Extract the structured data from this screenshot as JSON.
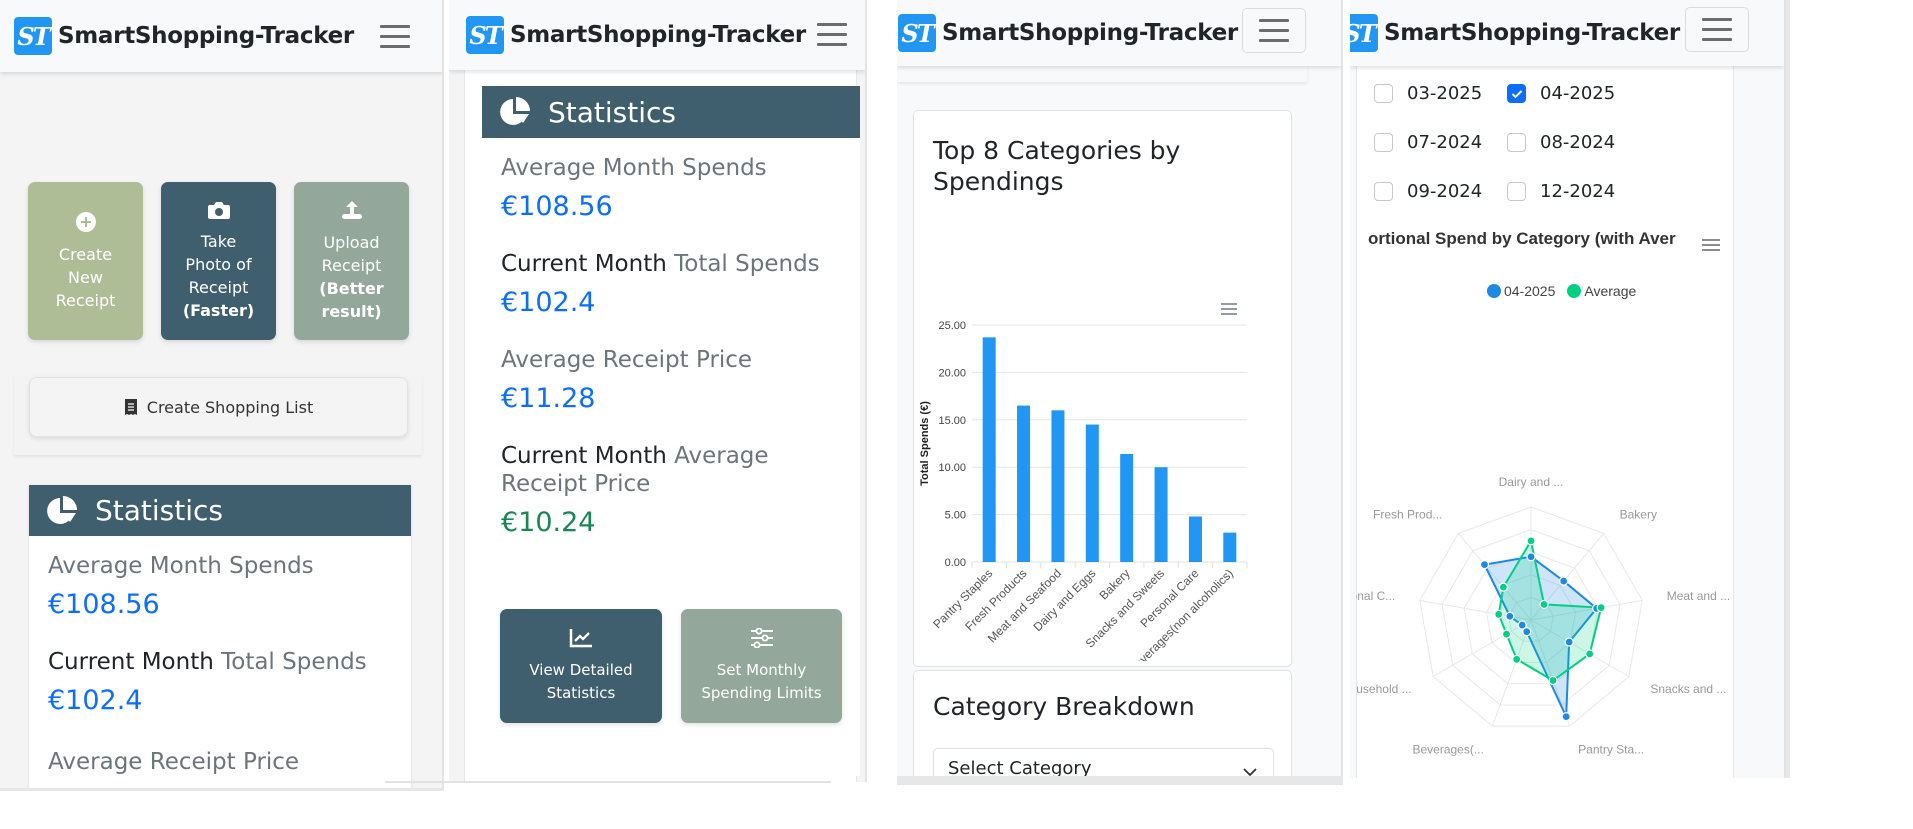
{
  "app": {
    "brand": "SmartShopping-Tracker",
    "logo_text": "ST"
  },
  "colors": {
    "accent": "#2196f3",
    "stat_header": "#3f5f6f",
    "tile_olive": "#aebd95",
    "tile_dark": "#3f5f6f",
    "tile_sage": "#93a89b",
    "value_blue": "#0d6efd",
    "value_green": "#198754"
  },
  "panel1": {
    "tiles": [
      {
        "icon": "plus-circle-icon",
        "line1": "Create",
        "line2": "New",
        "line3": "Receipt",
        "bold": ""
      },
      {
        "icon": "camera-icon",
        "line1": "Take",
        "line2": "Photo of",
        "line3": "Receipt",
        "bold": "(Faster)"
      },
      {
        "icon": "upload-icon",
        "line1": "Upload",
        "line2": "Receipt",
        "line3": "(Better",
        "bold": "result)"
      }
    ],
    "shopping_list_label": "Create Shopping List",
    "stats_title": "Statistics",
    "stats": [
      {
        "label_dark": "",
        "label": "Average Month Spends",
        "value": "€108.56"
      },
      {
        "label_dark": "Current Month",
        "label": "Total Spends",
        "value": "€102.4"
      },
      {
        "label_dark": "",
        "label": "Average Receipt Price",
        "value": ""
      }
    ]
  },
  "panel2": {
    "stats_title": "Statistics",
    "stats": [
      {
        "label_dark": "",
        "label": "Average Month Spends",
        "value": "€108.56"
      },
      {
        "label_dark": "Current Month",
        "label": "Total Spends",
        "value": "€102.4"
      },
      {
        "label_dark": "",
        "label": "Average Receipt Price",
        "value": "€11.28"
      },
      {
        "label_dark": "Current Month",
        "label": "Average Receipt Price",
        "value": "€10.24"
      }
    ],
    "buttons": [
      {
        "icon": "line-chart-icon",
        "line1": "View Detailed",
        "line2": "Statistics"
      },
      {
        "icon": "sliders-icon",
        "line1": "Set Monthly",
        "line2": "Spending Limits"
      }
    ]
  },
  "panel3": {
    "chart_title_line1": "Top 8 Categories by",
    "chart_title_line2": "Spendings",
    "breakdown_title": "Category Breakdown",
    "select_value": "Select Category"
  },
  "panel4": {
    "months": [
      {
        "label": "03-2025",
        "checked": false
      },
      {
        "label": "04-2025",
        "checked": true
      },
      {
        "label": "07-2024",
        "checked": false
      },
      {
        "label": "08-2024",
        "checked": false
      },
      {
        "label": "09-2024",
        "checked": false
      },
      {
        "label": "12-2024",
        "checked": false
      }
    ],
    "radar_title": "Proportional Spend by Category (with Average)",
    "radar_title_visible": "ortional Spend by Category (with Aver",
    "legend": [
      {
        "label": "04-2025",
        "color": "#1e88e5"
      },
      {
        "label": "Average",
        "color": "#00d084"
      }
    ]
  },
  "chart_data": [
    {
      "type": "bar",
      "title": "Top 8 Categories by Spendings",
      "xlabel": "",
      "ylabel": "Total Spends (€)",
      "ylim": [
        0,
        25
      ],
      "yticks": [
        "0.00",
        "5.00",
        "10.00",
        "15.00",
        "20.00",
        "25.00"
      ],
      "categories": [
        "Pantry Staples",
        "Fresh Products",
        "Meat and Seafood",
        "Dairy and Eggs",
        "Bakery",
        "Snacks and Sweets",
        "Personal Care",
        "Beverages(non alcoholics)"
      ],
      "values": [
        23.7,
        16.5,
        16.0,
        14.5,
        11.4,
        10.0,
        4.8,
        3.1
      ],
      "color": "#2196f3",
      "grid": true
    },
    {
      "type": "radar",
      "title": "Proportional Spend by Category (with Average)",
      "axes": [
        "Dairy and ...",
        "Bakery",
        "Meat and ...",
        "Snacks and ...",
        "Pantry Sta...",
        "Beverages(...",
        "Household ...",
        "Personal C...",
        "Fresh Prod..."
      ],
      "series": [
        {
          "name": "04-2025",
          "color": "#1e88e5",
          "values": [
            0.56,
            0.45,
            0.59,
            0.39,
            0.91,
            0.11,
            0.09,
            0.19,
            0.64
          ]
        },
        {
          "name": "Average",
          "color": "#00d084",
          "values": [
            0.7,
            0.18,
            0.63,
            0.6,
            0.57,
            0.37,
            0.25,
            0.29,
            0.38
          ]
        }
      ],
      "legend_position": "top"
    }
  ]
}
